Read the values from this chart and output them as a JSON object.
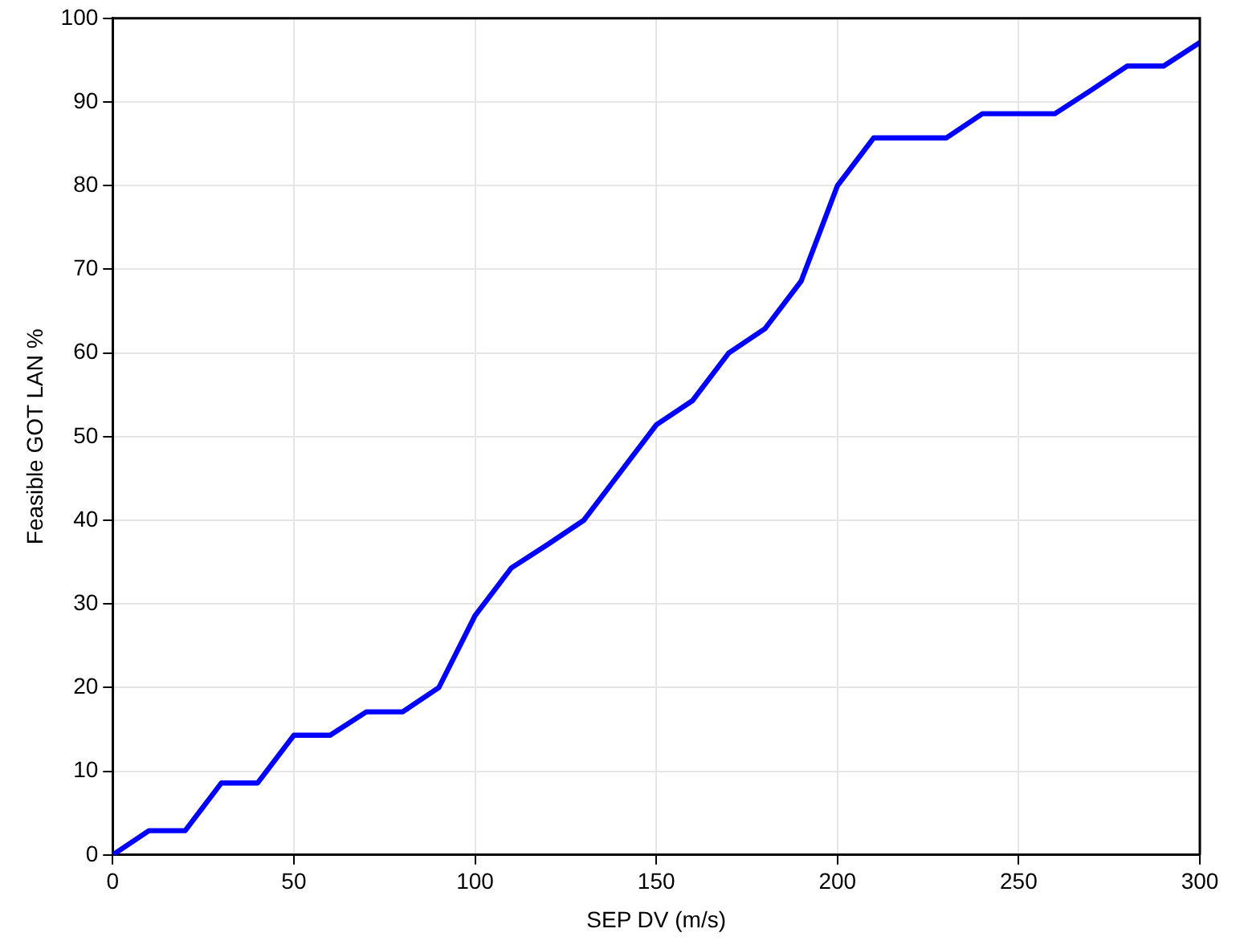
{
  "chart_data": {
    "type": "line",
    "xlabel": "SEP DV (m/s)",
    "ylabel": "Feasible GOT LAN %",
    "x": [
      0,
      10,
      20,
      30,
      40,
      50,
      60,
      70,
      80,
      90,
      100,
      110,
      120,
      130,
      140,
      150,
      160,
      170,
      180,
      190,
      200,
      210,
      220,
      230,
      240,
      250,
      260,
      270,
      280,
      290,
      300
    ],
    "series": [
      {
        "color": "#0000ff",
        "values": [
          0,
          2.9,
          2.9,
          8.6,
          8.6,
          14.3,
          14.3,
          17.1,
          17.1,
          20,
          28.6,
          34.3,
          37.1,
          40,
          45.7,
          51.4,
          54.3,
          60,
          62.9,
          68.6,
          80,
          85.7,
          85.7,
          85.7,
          88.6,
          88.6,
          88.6,
          91.4,
          94.3,
          94.3,
          97.1
        ]
      }
    ],
    "xlim": [
      0,
      300
    ],
    "xticks": [
      0,
      50,
      100,
      150,
      200,
      250,
      300
    ],
    "ylim": [
      0,
      100
    ],
    "yticks": [
      0,
      10,
      20,
      30,
      40,
      50,
      60,
      70,
      80,
      90,
      100
    ],
    "grid": true,
    "legend": false,
    "marker": "none",
    "line_style": "solid"
  }
}
